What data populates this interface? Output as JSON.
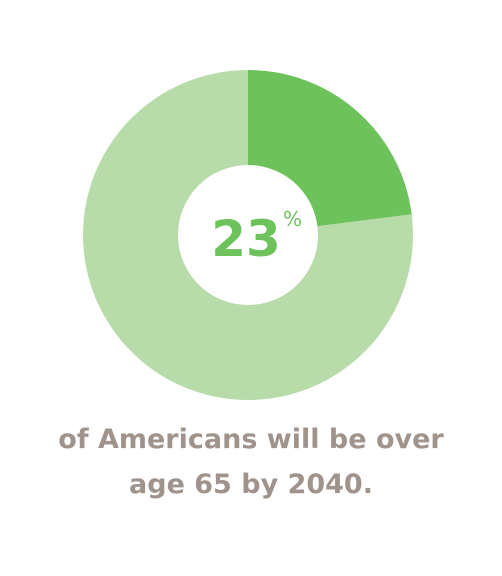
{
  "chart_data": {
    "type": "pie",
    "donut": true,
    "slices": [
      {
        "value": 23,
        "color": "#6dc25b"
      },
      {
        "value": 77,
        "color": "#b7dcaa"
      }
    ],
    "center_value": "23",
    "center_unit": "%"
  },
  "caption": {
    "line1": "of Americans will be over",
    "line2": "age 65 by 2040."
  },
  "colors": {
    "highlight": "#6dc25b",
    "remainder": "#b7dcaa",
    "caption_text": "#a0938b",
    "center_fill": "#ffffff"
  }
}
